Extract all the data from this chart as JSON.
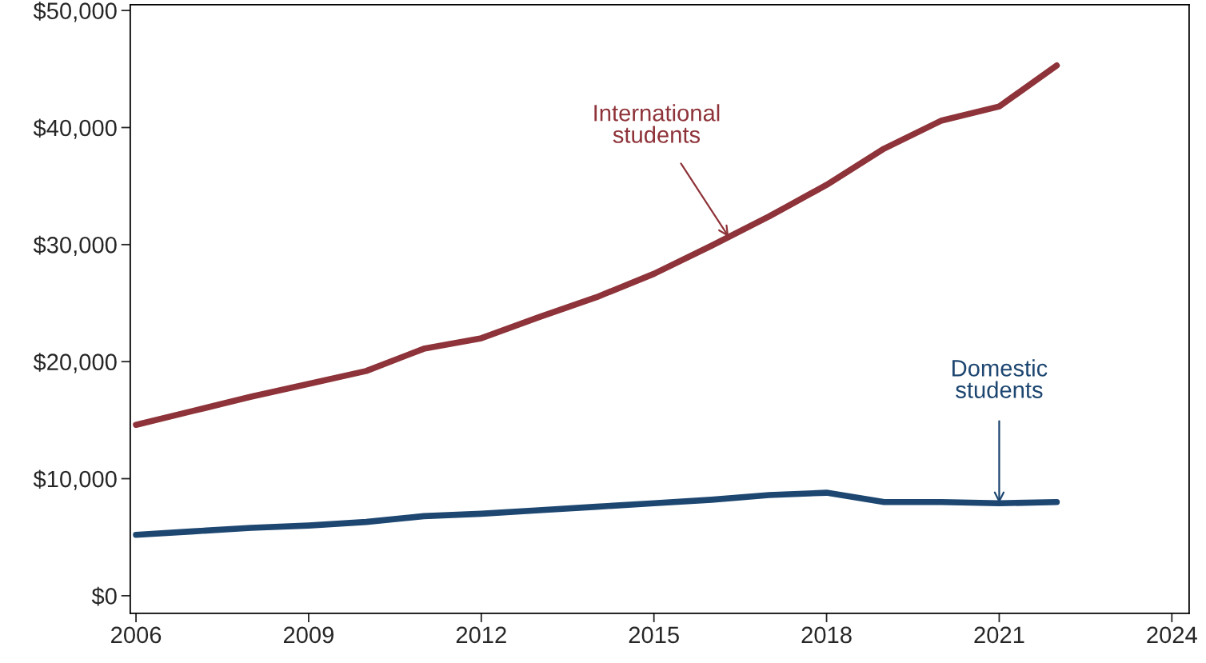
{
  "chart_data": {
    "type": "line",
    "x": [
      2006,
      2007,
      2008,
      2009,
      2010,
      2011,
      2012,
      2013,
      2014,
      2015,
      2016,
      2017,
      2018,
      2019,
      2020,
      2021,
      2022
    ],
    "series": [
      {
        "color": "#8e3339",
        "values": [
          14600,
          15800,
          17000,
          18100,
          19200,
          21100,
          22000,
          23800,
          25500,
          27500,
          29900,
          32400,
          35100,
          38200,
          40600,
          41800,
          45300
        ]
      },
      {
        "color": "#1d4670",
        "values": [
          5200,
          5500,
          5800,
          6000,
          6300,
          6800,
          7000,
          7300,
          7600,
          7900,
          8200,
          8600,
          8800,
          8000,
          8000,
          7900,
          8000
        ]
      }
    ],
    "xlim": [
      2005.9,
      2024.3
    ],
    "xticks": [
      2006,
      2009,
      2012,
      2015,
      2018,
      2021,
      2024
    ],
    "ylim": [
      -1500,
      50500
    ],
    "yticks": [
      {
        "value": 0,
        "label": "$0"
      },
      {
        "value": 10000,
        "label": "$10,000"
      },
      {
        "value": 20000,
        "label": "$20,000"
      },
      {
        "value": 30000,
        "label": "$30,000"
      },
      {
        "value": 40000,
        "label": "$40,000"
      },
      {
        "value": 50000,
        "label": "$50,000"
      }
    ],
    "annotations": [
      {
        "text": "International\nstudents",
        "x": 2016.3,
        "y": 30650
      },
      {
        "text": "Domestic\nstudents",
        "x": 2021,
        "y": 7900
      }
    ],
    "grid": false,
    "marker": "none",
    "line_style": "solid"
  }
}
